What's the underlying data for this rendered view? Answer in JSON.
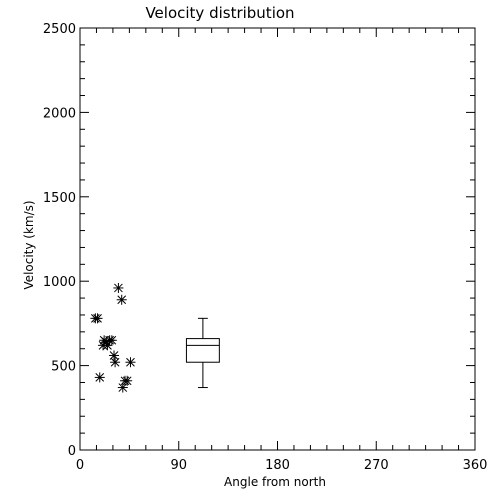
{
  "chart_data": {
    "type": "scatter",
    "title": "Velocity distribution",
    "xlabel": "Angle from north",
    "ylabel": "Velocity (km/s)",
    "xlim": [
      0,
      360
    ],
    "ylim": [
      0,
      2500
    ],
    "xticks": [
      0,
      90,
      180,
      270,
      360
    ],
    "yticks": [
      0,
      500,
      1000,
      1500,
      2000,
      2500
    ],
    "x_minor_step": 15,
    "y_minor_step": 100,
    "grid": false,
    "marker": "asterisk",
    "points": [
      {
        "x": 14,
        "y": 780
      },
      {
        "x": 16,
        "y": 780
      },
      {
        "x": 18,
        "y": 430
      },
      {
        "x": 21,
        "y": 620
      },
      {
        "x": 22,
        "y": 650
      },
      {
        "x": 24,
        "y": 640
      },
      {
        "x": 25,
        "y": 620
      },
      {
        "x": 27,
        "y": 650
      },
      {
        "x": 29,
        "y": 650
      },
      {
        "x": 31,
        "y": 560
      },
      {
        "x": 32,
        "y": 520
      },
      {
        "x": 35,
        "y": 960
      },
      {
        "x": 38,
        "y": 890
      },
      {
        "x": 39,
        "y": 370
      },
      {
        "x": 41,
        "y": 410
      },
      {
        "x": 43,
        "y": 410
      },
      {
        "x": 46,
        "y": 520
      }
    ],
    "boxplot": {
      "x": 112,
      "width": 30,
      "whisker_low": 370,
      "q1": 520,
      "median": 620,
      "q3": 660,
      "whisker_high": 780
    },
    "colors": {
      "marks": "#000000",
      "background": "#ffffff"
    }
  }
}
